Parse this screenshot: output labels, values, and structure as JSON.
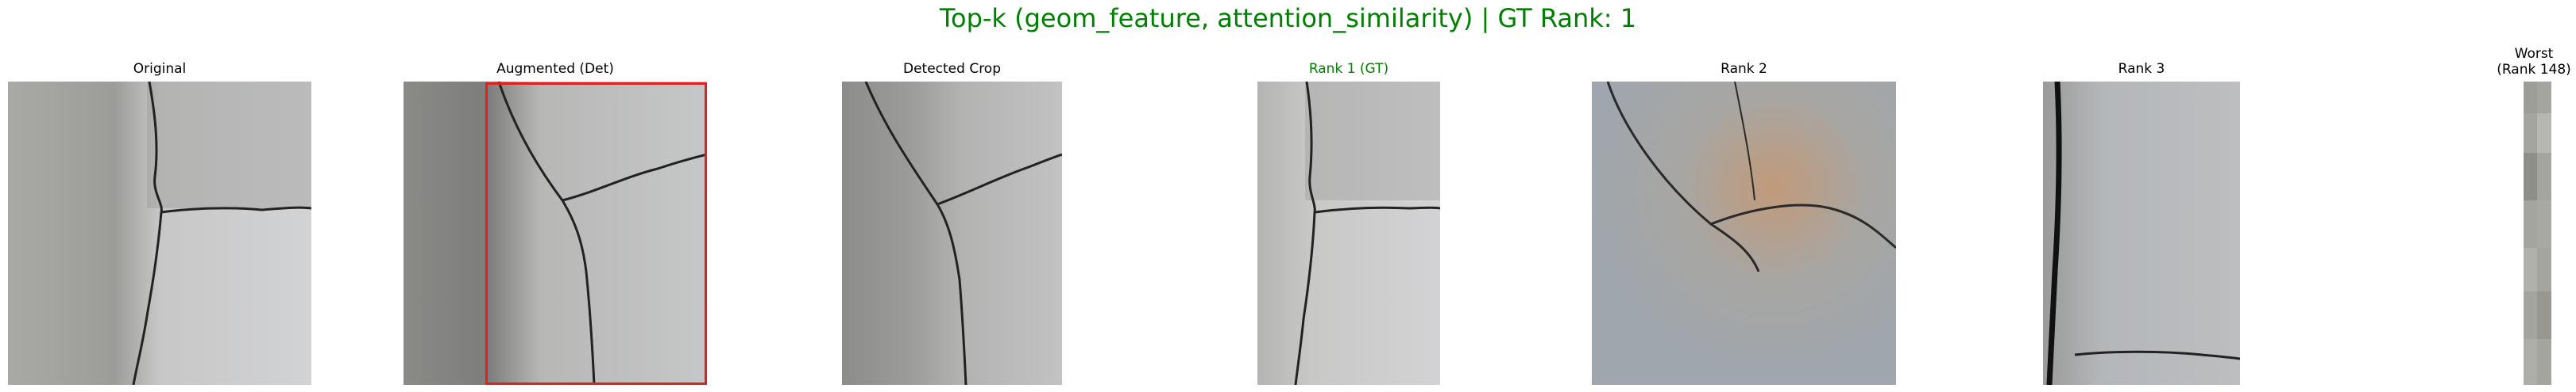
{
  "figure": {
    "title": "Top-k (geom_feature, attention_similarity) | GT Rank: 1",
    "title_color": "#008000"
  },
  "panels": {
    "original": {
      "title": "Original"
    },
    "augmented": {
      "title": "Augmented (Det)",
      "bbox_color": "#e32020"
    },
    "detected": {
      "title": "Detected Crop"
    },
    "rank1": {
      "title": "Rank 1 (GT)",
      "title_color": "#008000"
    },
    "rank2": {
      "title": "Rank 2"
    },
    "rank3": {
      "title": "Rank 3"
    },
    "worst": {
      "title_line1": "Worst",
      "title_line2": "(Rank 148)"
    }
  }
}
